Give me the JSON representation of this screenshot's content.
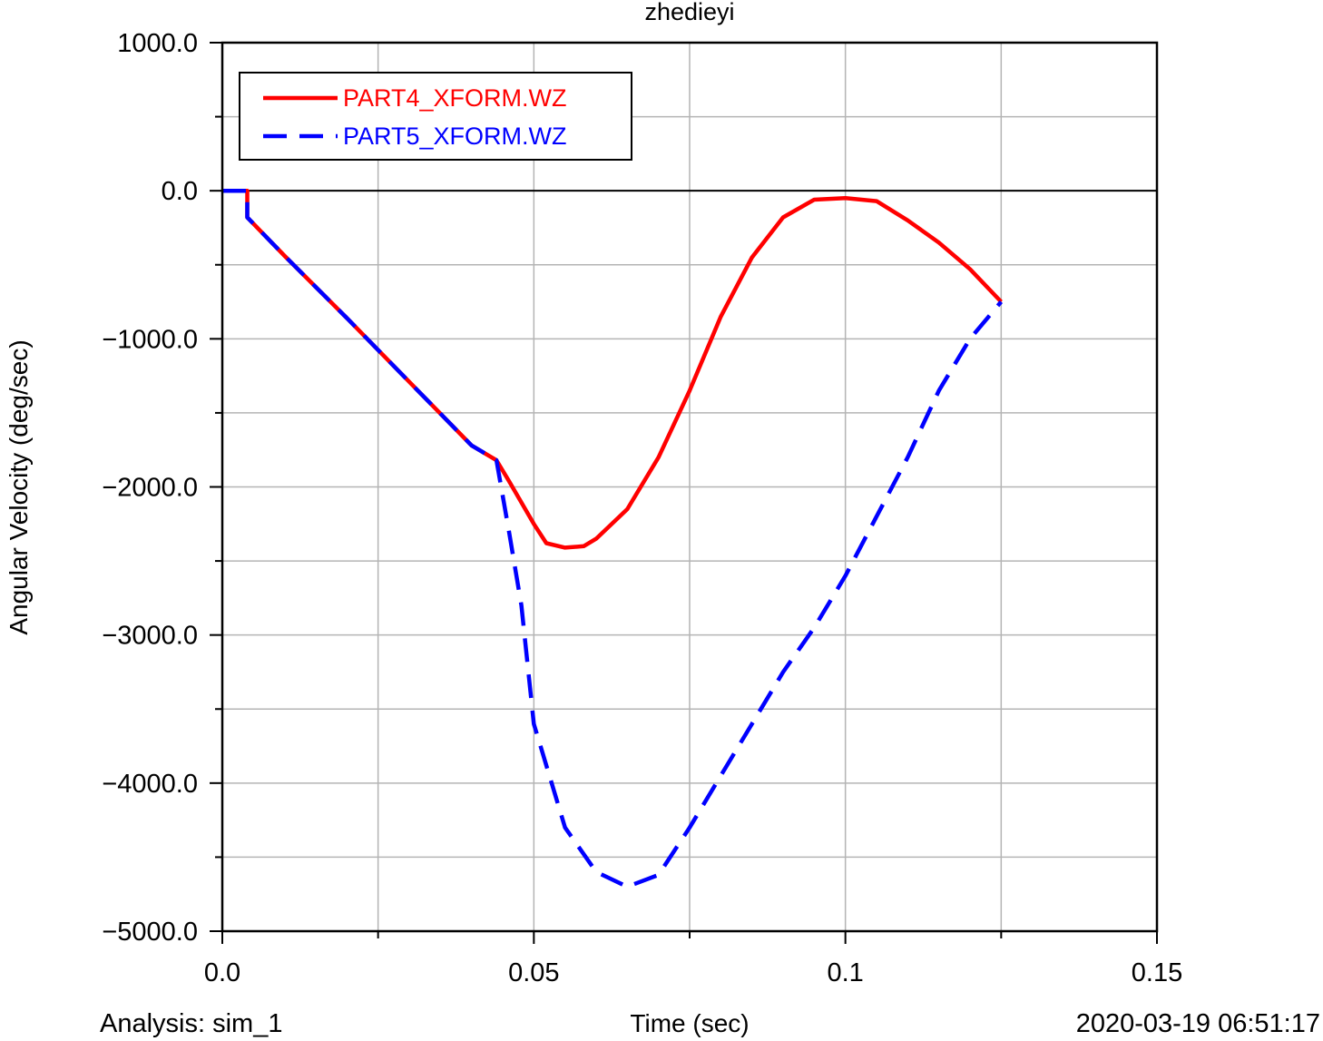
{
  "chart_data": {
    "type": "line",
    "title": "zhedieyi",
    "xlabel": "Time (sec)",
    "ylabel": "Angular Velocity (deg/sec)",
    "xlim": [
      0.0,
      0.15
    ],
    "ylim": [
      -5000.0,
      1000.0
    ],
    "x_ticks": [
      0.0,
      0.05,
      0.1,
      0.15
    ],
    "x_tick_labels": [
      "0.0",
      "0.05",
      "0.1",
      "0.15"
    ],
    "x_minor_step": 0.025,
    "y_ticks": [
      1000,
      0,
      -1000,
      -2000,
      -3000,
      -4000,
      -5000
    ],
    "y_tick_labels": [
      "1000.0",
      "0.0",
      "−1000.0",
      "−2000.0",
      "−3000.0",
      "−4000.0",
      "−5000.0"
    ],
    "y_minor_step": 500,
    "grid": true,
    "zero_line": true,
    "legend_position": "top-left",
    "series": [
      {
        "name": "PART4_XFORM.WZ",
        "color": "#ff0000",
        "style": "solid",
        "x": [
          0.0,
          0.004,
          0.004,
          0.01,
          0.02,
          0.03,
          0.04,
          0.044,
          0.046,
          0.05,
          0.052,
          0.055,
          0.058,
          0.06,
          0.065,
          0.07,
          0.075,
          0.08,
          0.085,
          0.09,
          0.095,
          0.1,
          0.105,
          0.11,
          0.115,
          0.12,
          0.125
        ],
        "y": [
          0.0,
          0.0,
          -180,
          -440,
          -860,
          -1290,
          -1720,
          -1820,
          -1960,
          -2250,
          -2380,
          -2410,
          -2400,
          -2350,
          -2150,
          -1800,
          -1350,
          -850,
          -450,
          -180,
          -60,
          -50,
          -70,
          -200,
          -350,
          -530,
          -750
        ]
      },
      {
        "name": "PART5_XFORM.WZ",
        "color": "#0000ff",
        "style": "dashed",
        "x": [
          0.0,
          0.004,
          0.004,
          0.01,
          0.02,
          0.03,
          0.04,
          0.044,
          0.046,
          0.048,
          0.05,
          0.055,
          0.06,
          0.065,
          0.07,
          0.075,
          0.08,
          0.085,
          0.09,
          0.095,
          0.1,
          0.105,
          0.11,
          0.115,
          0.12,
          0.125
        ],
        "y": [
          0.0,
          0.0,
          -180,
          -440,
          -860,
          -1290,
          -1720,
          -1820,
          -2300,
          -2800,
          -3600,
          -4300,
          -4600,
          -4700,
          -4620,
          -4300,
          -3950,
          -3600,
          -3250,
          -2950,
          -2600,
          -2200,
          -1800,
          -1350,
          -1000,
          -750
        ]
      }
    ]
  },
  "footer": {
    "analysis": "Analysis:  sim_1",
    "timestamp": "2020-03-19 06:51:17"
  }
}
